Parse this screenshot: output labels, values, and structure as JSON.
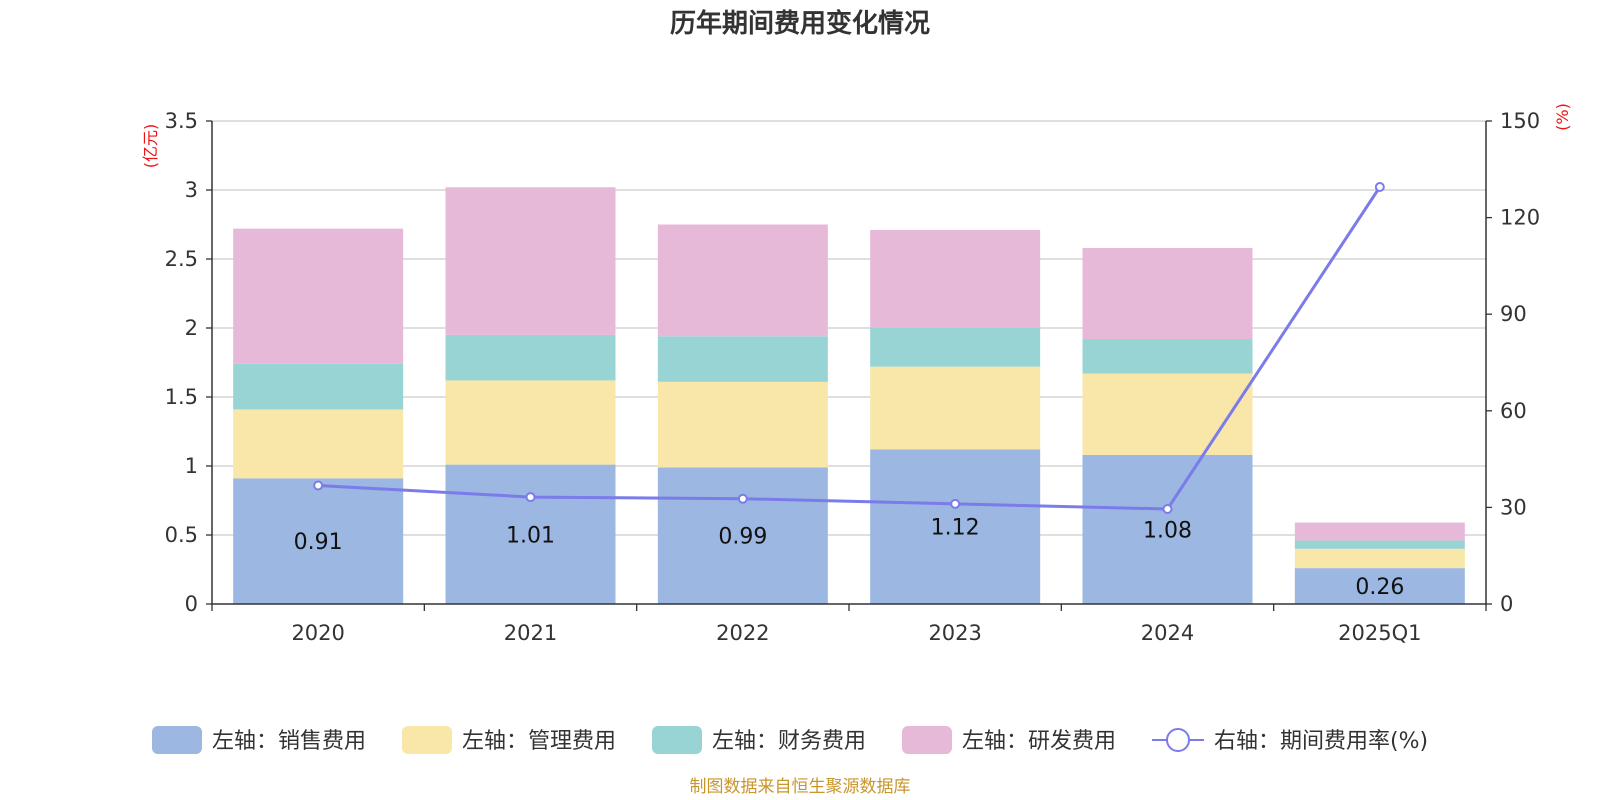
{
  "chart_data": {
    "type": "bar",
    "stacked": true,
    "title": "历年期间费用变化情况",
    "categories": [
      "2020",
      "2021",
      "2022",
      "2023",
      "2024",
      "2025Q1"
    ],
    "series": [
      {
        "name": "左轴：销售费用",
        "axis": "left",
        "color": "#9bb7e2",
        "values": [
          0.91,
          1.01,
          0.99,
          1.12,
          1.08,
          0.26
        ],
        "labels": [
          "0.91",
          "1.01",
          "0.99",
          "1.12",
          "1.08",
          "0.26"
        ]
      },
      {
        "name": "左轴：管理费用",
        "axis": "left",
        "color": "#f8e7a8",
        "values": [
          0.5,
          0.61,
          0.62,
          0.6,
          0.59,
          0.14
        ]
      },
      {
        "name": "左轴：财务费用",
        "axis": "left",
        "color": "#98d4d4",
        "values": [
          0.33,
          0.33,
          0.33,
          0.28,
          0.25,
          0.06
        ]
      },
      {
        "name": "左轴：研发费用",
        "axis": "left",
        "color": "#e7b9d9",
        "values": [
          0.98,
          1.07,
          0.81,
          0.71,
          0.66,
          0.13
        ]
      },
      {
        "name": "右轴：期间费用率(%)",
        "axis": "right",
        "type": "line",
        "color": "#7b7bea",
        "values": [
          36.8,
          33.2,
          32.7,
          31.1,
          29.5,
          129.5
        ]
      }
    ],
    "left_axis": {
      "unit": "(亿元)",
      "ylim": [
        0,
        3.5
      ],
      "ticks": [
        "0",
        "0.5",
        "1",
        "1.5",
        "2",
        "2.5",
        "3",
        "3.5"
      ]
    },
    "right_axis": {
      "unit": "(%)",
      "ylim": [
        0,
        150
      ],
      "ticks": [
        "0",
        "30",
        "60",
        "90",
        "120",
        "150"
      ]
    },
    "grid": true,
    "legend_position": "bottom",
    "source": "制图数据来自恒生聚源数据库"
  }
}
